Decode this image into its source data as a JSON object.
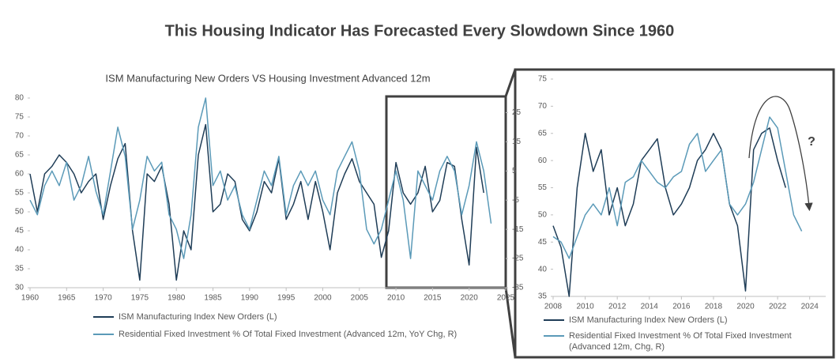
{
  "title": "This Housing Indicator Has Forecasted Every Slowdown Since 1960",
  "chart_data": [
    {
      "type": "line",
      "subtitle": "ISM Manufacturing New Orders VS Housing Investment Advanced 12m",
      "x": [
        1960,
        1961,
        1962,
        1963,
        1964,
        1965,
        1966,
        1967,
        1968,
        1969,
        1970,
        1971,
        1972,
        1973,
        1974,
        1975,
        1976,
        1977,
        1978,
        1979,
        1980,
        1981,
        1982,
        1983,
        1984,
        1985,
        1986,
        1987,
        1988,
        1989,
        1990,
        1991,
        1992,
        1993,
        1994,
        1995,
        1996,
        1997,
        1998,
        1999,
        2000,
        2001,
        2002,
        2003,
        2004,
        2005,
        2006,
        2007,
        2008,
        2009,
        2010,
        2011,
        2012,
        2013,
        2014,
        2015,
        2016,
        2017,
        2018,
        2019,
        2020,
        2021,
        2022,
        2023
      ],
      "series": [
        {
          "name": "ISM Manufacturing Index New Orders (L)",
          "color": "#1f3d57",
          "values": [
            60,
            50,
            60,
            62,
            65,
            63,
            60,
            55,
            58,
            60,
            48,
            57,
            64,
            68,
            45,
            32,
            60,
            58,
            62,
            52,
            32,
            45,
            40,
            65,
            73,
            50,
            52,
            60,
            58,
            48,
            45,
            50,
            58,
            55,
            64,
            48,
            52,
            58,
            48,
            58,
            50,
            40,
            55,
            60,
            64,
            58,
            55,
            52,
            38,
            45,
            63,
            55,
            52,
            55,
            62,
            50,
            53,
            63,
            62,
            48,
            36,
            67,
            55,
            null
          ]
        },
        {
          "name": "Residential Fixed Investment % Of Total Fixed Investment (Advanced 12m, YoY Chg, R)",
          "color": "#5b9ab8",
          "axis": "y2",
          "values": [
            -5,
            -10,
            0,
            5,
            0,
            8,
            -5,
            0,
            10,
            -2,
            -10,
            5,
            20,
            10,
            -15,
            -5,
            10,
            5,
            8,
            -10,
            -15,
            -25,
            -10,
            20,
            30,
            0,
            5,
            -5,
            0,
            -10,
            -15,
            -5,
            5,
            0,
            10,
            -10,
            0,
            5,
            0,
            5,
            -5,
            -10,
            5,
            10,
            15,
            5,
            -15,
            -20,
            -15,
            -5,
            5,
            -5,
            -25,
            5,
            0,
            -5,
            5,
            10,
            5,
            -10,
            0,
            15,
            5,
            -13
          ]
        }
      ],
      "xlim": [
        1960,
        2025
      ],
      "xticks": [
        1960,
        1965,
        1970,
        1975,
        1980,
        1985,
        1990,
        1995,
        2000,
        2005,
        2010,
        2015,
        2020,
        2025
      ],
      "ylim": [
        30,
        80
      ],
      "yticks": [
        30,
        35,
        40,
        45,
        50,
        55,
        60,
        65,
        70,
        75,
        80
      ],
      "y2lim": [
        -35,
        30
      ],
      "y2ticks": [
        -35,
        -25,
        -15,
        -5,
        5,
        15,
        25
      ]
    },
    {
      "type": "line",
      "annotation": "?",
      "x": [
        2008,
        2008.5,
        2009,
        2009.5,
        2010,
        2010.5,
        2011,
        2011.5,
        2012,
        2012.5,
        2013,
        2013.5,
        2014,
        2014.5,
        2015,
        2015.5,
        2016,
        2016.5,
        2017,
        2017.5,
        2018,
        2018.5,
        2019,
        2019.5,
        2020,
        2020.5,
        2021,
        2021.5,
        2022,
        2022.5,
        2023,
        2023.5
      ],
      "series": [
        {
          "name": "ISM Manufacturing Index New Orders (L)",
          "color": "#1f3d57",
          "values": [
            48,
            44,
            35,
            55,
            65,
            58,
            62,
            50,
            55,
            48,
            52,
            60,
            62,
            64,
            55,
            50,
            52,
            55,
            60,
            62,
            65,
            62,
            52,
            48,
            36,
            62,
            65,
            66,
            60,
            55,
            null,
            null
          ]
        },
        {
          "name": "Residential Fixed Investment % Of Total Fixed Investment (Advanced 12m, Chg, R)",
          "color": "#5b9ab8",
          "values": [
            46,
            45,
            42,
            46,
            50,
            52,
            50,
            55,
            48,
            56,
            57,
            60,
            58,
            56,
            55,
            57,
            58,
            63,
            65,
            58,
            60,
            62,
            52,
            50,
            52,
            56,
            62,
            68,
            66,
            58,
            50,
            47
          ]
        }
      ],
      "xlim": [
        2008,
        2025
      ],
      "xticks": [
        2008,
        2010,
        2012,
        2014,
        2016,
        2018,
        2020,
        2022,
        2024
      ],
      "ylim": [
        35,
        75
      ],
      "yticks": [
        35,
        40,
        45,
        50,
        55,
        60,
        65,
        70,
        75
      ]
    }
  ]
}
